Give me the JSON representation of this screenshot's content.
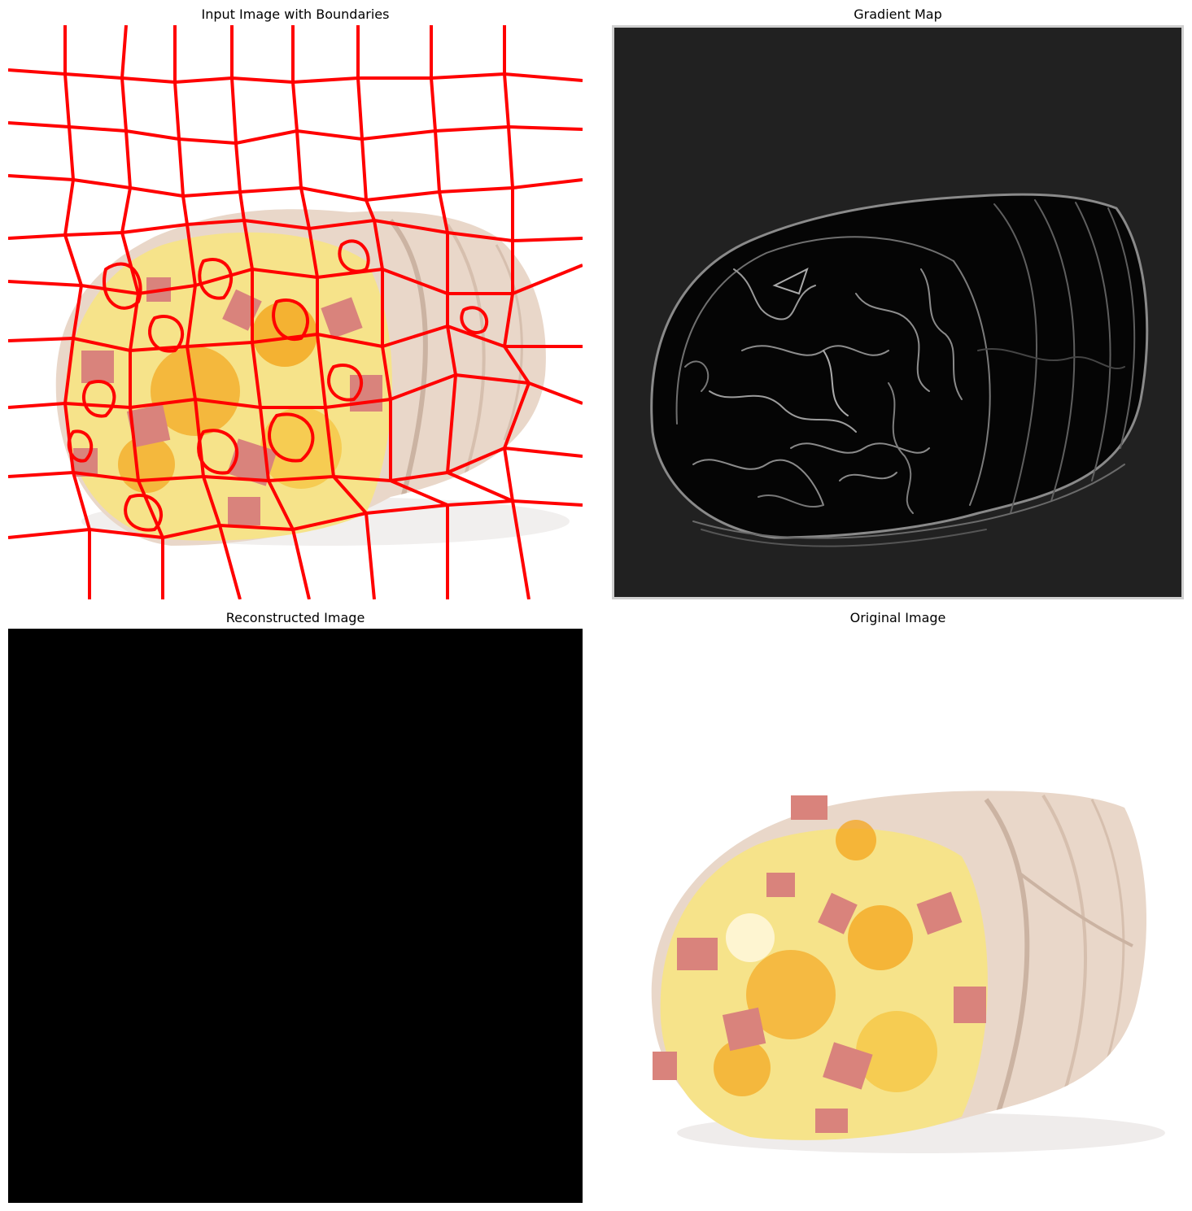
{
  "figure": {
    "panels": [
      {
        "title": "Input Image with Boundaries",
        "content": "burrito photo overlaid with red superpixel boundaries"
      },
      {
        "title": "Gradient Map",
        "content": "grayscale edge-magnitude map of the burrito"
      },
      {
        "title": "Reconstructed Image",
        "content": "all black image"
      },
      {
        "title": "Original Image",
        "content": "photo of a breakfast burrito with egg, ham and cheese"
      }
    ]
  },
  "colors": {
    "boundary": "#ff0000",
    "gradient_bg": "#212121",
    "reconstructed_bg": "#000000",
    "tortilla": "#e9d7c9",
    "egg": "#f6e38a",
    "cheese": "#f4a51c",
    "ham": "#d9837c"
  }
}
